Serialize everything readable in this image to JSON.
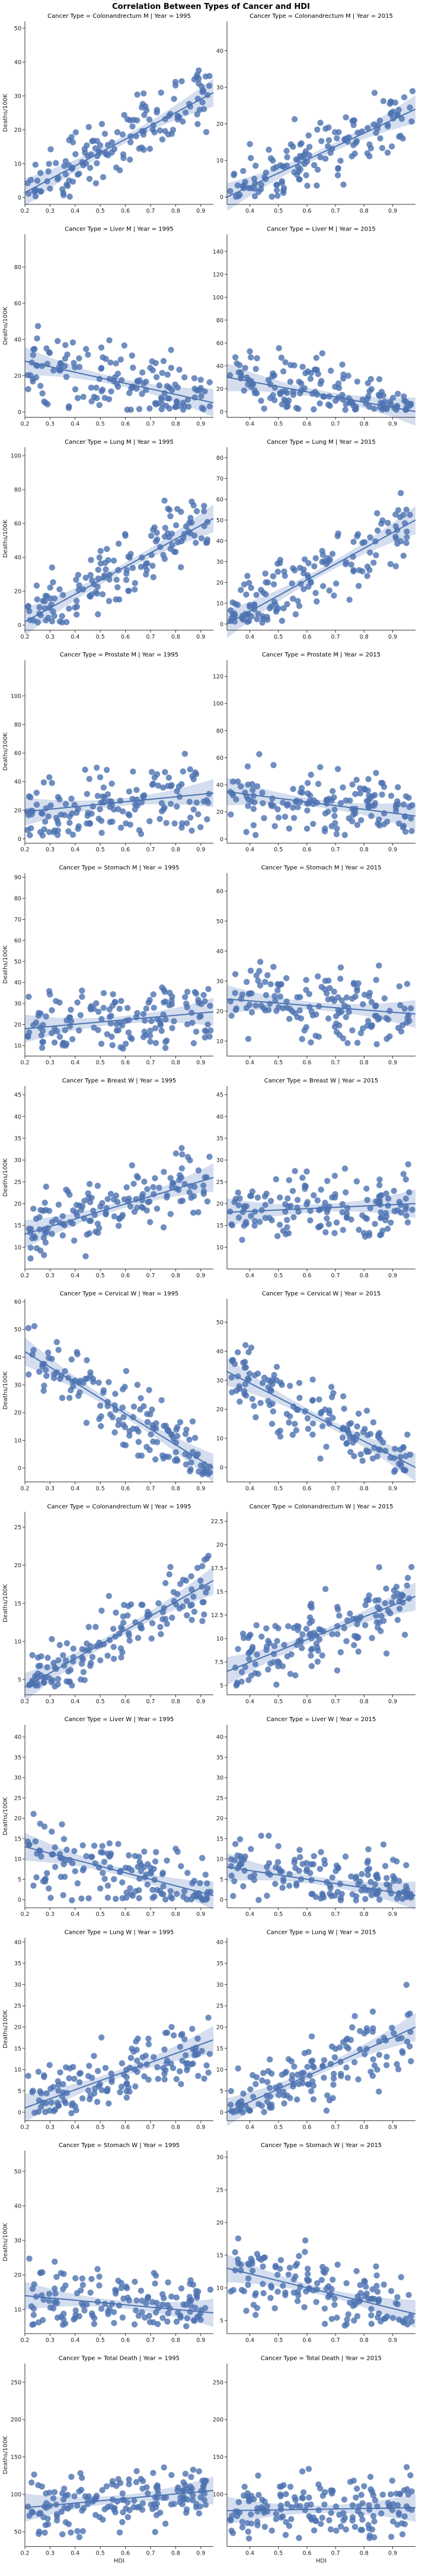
{
  "figure": {
    "suptitle": "Correlation Between Types of Cancer and HDI",
    "xlabel": "HDI",
    "ylabel": "Deaths/100K",
    "point_color": "#4c72b0",
    "line_color": "#4c72b0",
    "band_color": "#c6d3ea"
  },
  "chart_data": [
    {
      "type": "scatter",
      "title": "Cancer Type = Colonandrectum M | Year = 1995",
      "xlim": [
        0.2,
        0.95
      ],
      "ylim": [
        -2,
        52
      ],
      "xticks": [
        0.2,
        0.3,
        0.4,
        0.5,
        0.6,
        0.7,
        0.8,
        0.9
      ],
      "yticks": [
        0,
        10,
        20,
        30,
        40,
        50
      ],
      "regression": [
        [
          0.2,
          1.5
        ],
        [
          0.95,
          31
        ]
      ],
      "npoints": 150,
      "seed": 1
    },
    {
      "type": "scatter",
      "title": "Cancer Type = Colonandrectum M | Year = 2015",
      "xlim": [
        0.32,
        0.98
      ],
      "ylim": [
        -2,
        48
      ],
      "xticks": [
        0.4,
        0.5,
        0.6,
        0.7,
        0.8,
        0.9
      ],
      "yticks": [
        0,
        10,
        20,
        30,
        40
      ],
      "regression": [
        [
          0.32,
          0
        ],
        [
          0.98,
          24
        ]
      ],
      "npoints": 150,
      "seed": 2
    },
    {
      "type": "scatter",
      "title": "Cancer Type = Liver M | Year = 1995",
      "xlim": [
        0.2,
        0.95
      ],
      "ylim": [
        -3,
        98
      ],
      "xticks": [
        0.2,
        0.3,
        0.4,
        0.5,
        0.6,
        0.7,
        0.8,
        0.9
      ],
      "yticks": [
        0,
        20,
        40,
        60,
        80
      ],
      "regression": [
        [
          0.2,
          28
        ],
        [
          0.95,
          5
        ]
      ],
      "npoints": 150,
      "seed": 3
    },
    {
      "type": "scatter",
      "title": "Cancer Type = Liver M | Year = 2015",
      "xlim": [
        0.32,
        0.98
      ],
      "ylim": [
        -5,
        155
      ],
      "xticks": [
        0.4,
        0.5,
        0.6,
        0.7,
        0.8,
        0.9
      ],
      "yticks": [
        0,
        20,
        40,
        60,
        80,
        100,
        120,
        140
      ],
      "regression": [
        [
          0.32,
          30
        ],
        [
          0.98,
          0
        ]
      ],
      "npoints": 150,
      "seed": 4
    },
    {
      "type": "scatter",
      "title": "Cancer Type = Lung M | Year = 1995",
      "xlim": [
        0.2,
        0.95
      ],
      "ylim": [
        -3,
        105
      ],
      "xticks": [
        0.2,
        0.3,
        0.4,
        0.5,
        0.6,
        0.7,
        0.8,
        0.9
      ],
      "yticks": [
        0,
        20,
        40,
        60,
        80,
        100
      ],
      "regression": [
        [
          0.2,
          2
        ],
        [
          0.95,
          63
        ]
      ],
      "npoints": 150,
      "seed": 5
    },
    {
      "type": "scatter",
      "title": "Cancer Type = Lung M | Year = 2015",
      "xlim": [
        0.32,
        0.98
      ],
      "ylim": [
        -3,
        85
      ],
      "xticks": [
        0.4,
        0.5,
        0.6,
        0.7,
        0.8,
        0.9
      ],
      "yticks": [
        0,
        10,
        20,
        30,
        40,
        50,
        60,
        70,
        80
      ],
      "regression": [
        [
          0.32,
          0
        ],
        [
          0.98,
          50
        ]
      ],
      "npoints": 150,
      "seed": 6
    },
    {
      "type": "scatter",
      "title": "Cancer Type = Prostate M | Year = 1995",
      "xlim": [
        0.2,
        0.95
      ],
      "ylim": [
        -3,
        125
      ],
      "xticks": [
        0.2,
        0.3,
        0.4,
        0.5,
        0.6,
        0.7,
        0.8,
        0.9
      ],
      "yticks": [
        0,
        20,
        40,
        60,
        80,
        100
      ],
      "regression": [
        [
          0.2,
          19
        ],
        [
          0.95,
          32
        ]
      ],
      "npoints": 150,
      "seed": 7
    },
    {
      "type": "scatter",
      "title": "Cancer Type = Prostate M | Year = 2015",
      "xlim": [
        0.32,
        0.98
      ],
      "ylim": [
        -3,
        132
      ],
      "xticks": [
        0.4,
        0.5,
        0.6,
        0.7,
        0.8,
        0.9
      ],
      "yticks": [
        0,
        20,
        40,
        60,
        80,
        100,
        120
      ],
      "regression": [
        [
          0.32,
          35
        ],
        [
          0.98,
          17
        ]
      ],
      "npoints": 150,
      "seed": 8
    },
    {
      "type": "scatter",
      "title": "Cancer Type = Stomach M | Year = 1995",
      "xlim": [
        0.2,
        0.95
      ],
      "ylim": [
        5,
        92
      ],
      "xticks": [
        0.2,
        0.3,
        0.4,
        0.5,
        0.6,
        0.7,
        0.8,
        0.9
      ],
      "yticks": [
        10,
        20,
        30,
        40,
        50,
        60,
        70,
        80,
        90
      ],
      "regression": [
        [
          0.2,
          18
        ],
        [
          0.95,
          26
        ]
      ],
      "npoints": 150,
      "seed": 9
    },
    {
      "type": "scatter",
      "title": "Cancer Type = Stomach M | Year = 2015",
      "xlim": [
        0.32,
        0.98
      ],
      "ylim": [
        5,
        66
      ],
      "xticks": [
        0.4,
        0.5,
        0.6,
        0.7,
        0.8,
        0.9
      ],
      "yticks": [
        10,
        20,
        30,
        40,
        50,
        60
      ],
      "regression": [
        [
          0.32,
          24
        ],
        [
          0.98,
          19
        ]
      ],
      "npoints": 150,
      "seed": 10
    },
    {
      "type": "scatter",
      "title": "Cancer Type = Breast W | Year = 1995",
      "xlim": [
        0.2,
        0.95
      ],
      "ylim": [
        5,
        47
      ],
      "xticks": [
        0.2,
        0.3,
        0.4,
        0.5,
        0.6,
        0.7,
        0.8,
        0.9
      ],
      "yticks": [
        10,
        15,
        20,
        25,
        30,
        35,
        40,
        45
      ],
      "regression": [
        [
          0.2,
          13
        ],
        [
          0.95,
          26
        ]
      ],
      "npoints": 150,
      "seed": 11
    },
    {
      "type": "scatter",
      "title": "Cancer Type = Breast W | Year = 2015",
      "xlim": [
        0.32,
        0.98
      ],
      "ylim": [
        5,
        47
      ],
      "xticks": [
        0.4,
        0.5,
        0.6,
        0.7,
        0.8,
        0.9
      ],
      "yticks": [
        10,
        15,
        20,
        25,
        30,
        35,
        40,
        45
      ],
      "regression": [
        [
          0.32,
          18
        ],
        [
          0.98,
          20
        ]
      ],
      "npoints": 150,
      "seed": 12
    },
    {
      "type": "scatter",
      "title": "Cancer Type = Cervical W | Year = 1995",
      "xlim": [
        0.2,
        0.95
      ],
      "ylim": [
        -5,
        61
      ],
      "xticks": [
        0.2,
        0.3,
        0.4,
        0.5,
        0.6,
        0.7,
        0.8,
        0.9
      ],
      "yticks": [
        0,
        10,
        20,
        30,
        40,
        50,
        60
      ],
      "regression": [
        [
          0.2,
          42
        ],
        [
          0.95,
          0
        ]
      ],
      "npoints": 150,
      "seed": 13
    },
    {
      "type": "scatter",
      "title": "Cancer Type = Cervical W | Year = 2015",
      "xlim": [
        0.32,
        0.98
      ],
      "ylim": [
        -5,
        58
      ],
      "xticks": [
        0.4,
        0.5,
        0.6,
        0.7,
        0.8,
        0.9
      ],
      "yticks": [
        0,
        10,
        20,
        30,
        40,
        50
      ],
      "regression": [
        [
          0.32,
          33
        ],
        [
          0.98,
          0
        ]
      ],
      "npoints": 150,
      "seed": 14
    },
    {
      "type": "scatter",
      "title": "Cancer Type = Colonandrectum W | Year = 1995",
      "xlim": [
        0.2,
        0.95
      ],
      "ylim": [
        3,
        27
      ],
      "xticks": [
        0.2,
        0.3,
        0.4,
        0.5,
        0.6,
        0.7,
        0.8,
        0.9
      ],
      "yticks": [
        5,
        10,
        15,
        20,
        25
      ],
      "regression": [
        [
          0.2,
          4
        ],
        [
          0.95,
          18
        ]
      ],
      "npoints": 150,
      "seed": 15
    },
    {
      "type": "scatter",
      "title": "Cancer Type = Colonandrectum W | Year = 2015",
      "xlim": [
        0.32,
        0.98
      ],
      "ylim": [
        4,
        23.5
      ],
      "xticks": [
        0.4,
        0.5,
        0.6,
        0.7,
        0.8,
        0.9
      ],
      "yticks": [
        5.0,
        7.5,
        10.0,
        12.5,
        15.0,
        17.5,
        20.0,
        22.5
      ],
      "regression": [
        [
          0.32,
          6.5
        ],
        [
          0.98,
          14.5
        ]
      ],
      "npoints": 150,
      "seed": 16
    },
    {
      "type": "scatter",
      "title": "Cancer Type = Liver W | Year = 1995",
      "xlim": [
        0.2,
        0.95
      ],
      "ylim": [
        -2,
        43
      ],
      "xticks": [
        0.2,
        0.3,
        0.4,
        0.5,
        0.6,
        0.7,
        0.8,
        0.9
      ],
      "yticks": [
        0,
        5,
        10,
        15,
        20,
        25,
        30,
        35,
        40
      ],
      "regression": [
        [
          0.2,
          13
        ],
        [
          0.95,
          1
        ]
      ],
      "npoints": 150,
      "seed": 17
    },
    {
      "type": "scatter",
      "title": "Cancer Type = Liver W | Year = 2015",
      "xlim": [
        0.32,
        0.98
      ],
      "ylim": [
        -2,
        43
      ],
      "xticks": [
        0.4,
        0.5,
        0.6,
        0.7,
        0.8,
        0.9
      ],
      "yticks": [
        0,
        5,
        10,
        15,
        20,
        25,
        30,
        35,
        40
      ],
      "regression": [
        [
          0.32,
          8
        ],
        [
          0.98,
          1
        ]
      ],
      "npoints": 150,
      "seed": 18
    },
    {
      "type": "scatter",
      "title": "Cancer Type = Lung W | Year = 1995",
      "xlim": [
        0.2,
        0.95
      ],
      "ylim": [
        -2,
        41
      ],
      "xticks": [
        0.2,
        0.3,
        0.4,
        0.5,
        0.6,
        0.7,
        0.8,
        0.9
      ],
      "yticks": [
        0,
        5,
        10,
        15,
        20,
        25,
        30,
        35,
        40
      ],
      "regression": [
        [
          0.2,
          1
        ],
        [
          0.95,
          17
        ]
      ],
      "npoints": 150,
      "seed": 19
    },
    {
      "type": "scatter",
      "title": "Cancer Type = Lung W | Year = 2015",
      "xlim": [
        0.32,
        0.98
      ],
      "ylim": [
        -2,
        41
      ],
      "xticks": [
        0.4,
        0.5,
        0.6,
        0.7,
        0.8,
        0.9
      ],
      "yticks": [
        0,
        5,
        10,
        15,
        20,
        25,
        30,
        35,
        40
      ],
      "regression": [
        [
          0.32,
          0
        ],
        [
          0.98,
          20
        ]
      ],
      "npoints": 150,
      "seed": 20
    },
    {
      "type": "scatter",
      "title": "Cancer Type = Stomach W | Year = 1995",
      "xlim": [
        0.2,
        0.95
      ],
      "ylim": [
        3,
        56
      ],
      "xticks": [
        0.2,
        0.3,
        0.4,
        0.5,
        0.6,
        0.7,
        0.8,
        0.9
      ],
      "yticks": [
        10,
        20,
        30,
        40,
        50
      ],
      "regression": [
        [
          0.2,
          14
        ],
        [
          0.95,
          9
        ]
      ],
      "npoints": 150,
      "seed": 21
    },
    {
      "type": "scatter",
      "title": "Cancer Type = Stomach W | Year = 2015",
      "xlim": [
        0.32,
        0.98
      ],
      "ylim": [
        3,
        31
      ],
      "xticks": [
        0.4,
        0.5,
        0.6,
        0.7,
        0.8,
        0.9
      ],
      "yticks": [
        5,
        10,
        15,
        20,
        25,
        30
      ],
      "regression": [
        [
          0.32,
          13
        ],
        [
          0.98,
          6
        ]
      ],
      "npoints": 150,
      "seed": 22
    },
    {
      "type": "scatter",
      "title": "Cancer Type = Total Death | Year = 1995",
      "xlim": [
        0.2,
        0.95
      ],
      "ylim": [
        30,
        275
      ],
      "xticks": [
        0.2,
        0.3,
        0.4,
        0.5,
        0.6,
        0.7,
        0.8,
        0.9
      ],
      "yticks": [
        50,
        100,
        150,
        200,
        250
      ],
      "regression": [
        [
          0.2,
          82
        ],
        [
          0.95,
          105
        ]
      ],
      "npoints": 170,
      "seed": 23
    },
    {
      "type": "scatter",
      "title": "Cancer Type = Total Death | Year = 2015",
      "xlim": [
        0.32,
        0.98
      ],
      "ylim": [
        30,
        275
      ],
      "xticks": [
        0.4,
        0.5,
        0.6,
        0.7,
        0.8,
        0.9
      ],
      "yticks": [
        100,
        150,
        200,
        250
      ],
      "regression": [
        [
          0.32,
          78
        ],
        [
          0.98,
          82
        ]
      ],
      "npoints": 170,
      "seed": 24
    }
  ]
}
